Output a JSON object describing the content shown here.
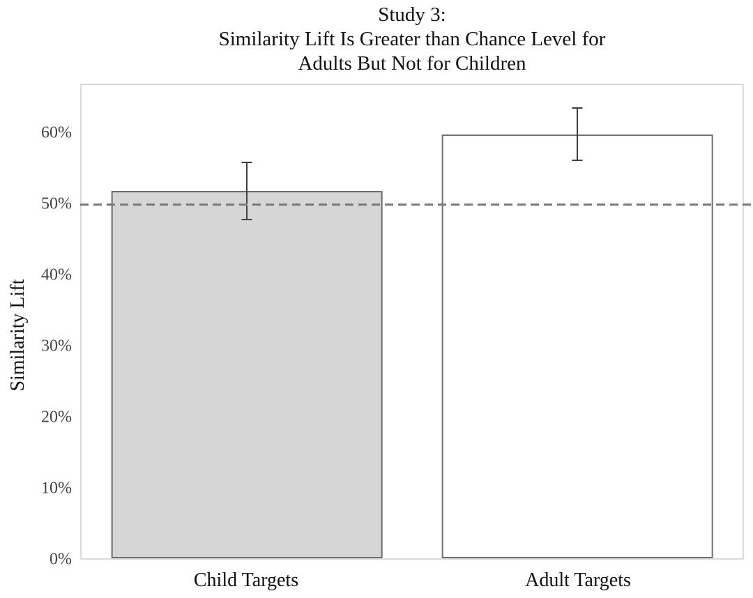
{
  "chart_data": {
    "type": "bar",
    "title": "Study 3:\nSimilarity Lift Is Greater than Chance Level for\nAdults But Not for Children",
    "xlabel": "",
    "ylabel": "Similarity Lift",
    "categories": [
      "Child Targets",
      "Adult Targets"
    ],
    "series": [
      {
        "name": "Similarity Lift",
        "values": [
          52,
          60
        ],
        "error_bars": [
          4,
          3.7
        ]
      }
    ],
    "yticks": [
      0,
      10,
      20,
      30,
      40,
      50,
      60
    ],
    "ytick_labels": [
      "0%",
      "10%",
      "20%",
      "30%",
      "40%",
      "50%",
      "60%"
    ],
    "ylim": [
      0,
      67
    ],
    "grid": false,
    "legend": false,
    "reference_line": {
      "value": 50,
      "style": "dashed"
    },
    "bar_styles": [
      {
        "fill": "#d6d6d6",
        "stroke": "#6f6f6f"
      },
      {
        "fill": "#ffffff",
        "stroke": "#6f6f6f"
      }
    ],
    "colors": {
      "reference_line": "#7a7a7a",
      "error_bar": "#3f3f3f",
      "plot_border": "#d9d9d9",
      "title_text": "#111111",
      "tick_text": "#444444",
      "background": "#ffffff"
    }
  }
}
